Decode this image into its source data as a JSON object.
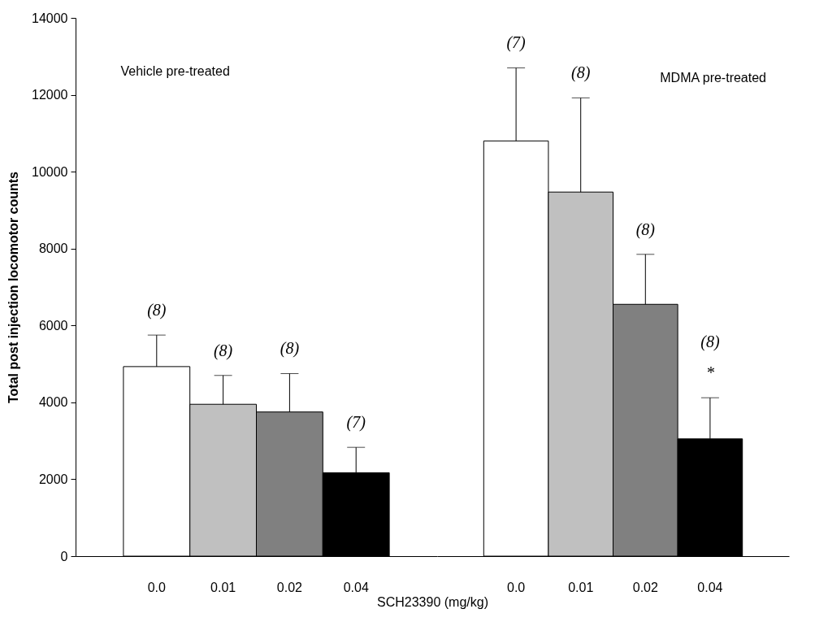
{
  "chart_data": [
    {
      "type": "bar",
      "title": "Vehicle pre-treated",
      "ylabel": "Total post injection locomotor counts",
      "xlabel": "SCH23390 (mg/kg)",
      "categories": [
        "0.0",
        "0.01",
        "0.02",
        "0.04"
      ],
      "values": [
        4930,
        3950,
        3750,
        2170
      ],
      "colors": [
        "#ffffff",
        "#c0c0c0",
        "#808080",
        "#000000"
      ],
      "errors": [
        [
          4930,
          5750
        ],
        [
          3950,
          4700
        ],
        [
          3750,
          4750
        ],
        [
          2170,
          2830
        ]
      ],
      "ylim": [
        0,
        14000
      ],
      "yticks": [
        0,
        2000,
        4000,
        6000,
        8000,
        10000,
        12000,
        14000
      ],
      "annotations": [
        "(8)",
        "(8)",
        "(8)",
        "(7)"
      ]
    },
    {
      "type": "bar",
      "title": "MDMA pre-treated",
      "categories": [
        "0.0",
        "0.01",
        "0.02",
        "0.04"
      ],
      "values": [
        10800,
        9470,
        6550,
        3050
      ],
      "colors": [
        "#ffffff",
        "#c0c0c0",
        "#808080",
        "#000000"
      ],
      "errors": [
        [
          10800,
          12700
        ],
        [
          9470,
          11920
        ],
        [
          6550,
          7850
        ],
        [
          3050,
          4120
        ]
      ],
      "ylim": [
        0,
        14000
      ],
      "yticks": [
        0,
        2000,
        4000,
        6000,
        8000,
        10000,
        12000,
        14000
      ],
      "tick_labels": "x",
      "annotations": [
        "(7)",
        "(8)",
        "(8)",
        "(8)",
        "*"
      ]
    }
  ]
}
